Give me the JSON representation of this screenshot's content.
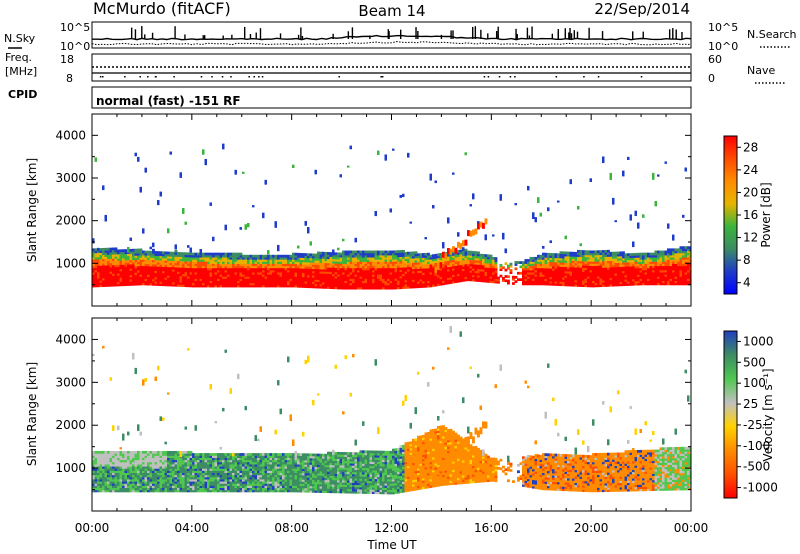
{
  "header": {
    "station": "McMurdo (fitACF)",
    "beam": "Beam 14",
    "date": "22/Sep/2014"
  },
  "noise_panel": {
    "left_label": "N.Sky",
    "right_label": "N.Search",
    "left_ticks": [
      "10^5",
      "10^0"
    ],
    "right_ticks": [
      "10^5",
      "10^0"
    ]
  },
  "freq_panel": {
    "left_label_1": "Freq.",
    "left_label_2": "[MHz]",
    "right_label": "Nave",
    "left_ticks": [
      "18",
      "8"
    ],
    "right_ticks": [
      "60",
      "0"
    ]
  },
  "cpid": {
    "label": "CPID",
    "text": "normal (fast) -151 RF"
  },
  "power_panel": {
    "ylabel": "Slant Range [km]",
    "yticks": [
      "4000",
      "3000",
      "2000",
      "1000"
    ],
    "cbar_label": "Power [dB]",
    "cbar_ticks": [
      "28",
      "24",
      "20",
      "16",
      "12",
      "8",
      "4"
    ],
    "cbar_colors": [
      "#ff0000",
      "#ff4b00",
      "#ff8c00",
      "#e6b400",
      "#3cb43c",
      "#3c8c64",
      "#1e3cc8",
      "#0000ff"
    ]
  },
  "velocity_panel": {
    "ylabel": "Slant Range [km]",
    "yticks": [
      "4000",
      "3000",
      "2000",
      "1000"
    ],
    "cbar_label": "Velocity [m s⁻¹]",
    "cbar_ticks": [
      "1000",
      "500",
      "100",
      "25",
      "-25",
      "-100",
      "-500",
      "-1000"
    ],
    "cbar_colors": [
      "#2040c0",
      "#3c8c64",
      "#50c850",
      "#c0c0c0",
      "#ffd200",
      "#ff8c00",
      "#ff5000",
      "#ff0000"
    ]
  },
  "xaxis": {
    "ticks": [
      "00:00",
      "04:00",
      "08:00",
      "12:00",
      "16:00",
      "20:00",
      "00:00"
    ],
    "label": "Time UT"
  },
  "chart_data": {
    "type": "heatmap",
    "x_unit": "hours UT",
    "xlim": [
      0,
      24
    ],
    "ylim": [
      0,
      4500
    ],
    "power": {
      "bands": [
        {
          "t": 0,
          "lo": 450,
          "hi": 1350
        },
        {
          "t": 2,
          "lo": 500,
          "hi": 1300
        },
        {
          "t": 4,
          "lo": 450,
          "hi": 1250
        },
        {
          "t": 6,
          "lo": 450,
          "hi": 1200
        },
        {
          "t": 8,
          "lo": 450,
          "hi": 1200
        },
        {
          "t": 10,
          "lo": 400,
          "hi": 1250
        },
        {
          "t": 12,
          "lo": 400,
          "hi": 1300
        },
        {
          "t": 13.5,
          "lo": 450,
          "hi": 1200
        },
        {
          "t": 15,
          "lo": 600,
          "hi": 1300
        },
        {
          "t": 17,
          "lo": 500,
          "hi": 1000
        },
        {
          "t": 18,
          "lo": 500,
          "hi": 1200
        },
        {
          "t": 20,
          "lo": 450,
          "hi": 1300
        },
        {
          "t": 22,
          "lo": 500,
          "hi": 1200
        },
        {
          "t": 24,
          "lo": 500,
          "hi": 1400
        }
      ]
    },
    "velocity": {
      "bands": [
        {
          "t": 0,
          "lo": 450,
          "hi": 1400
        },
        {
          "t": 4,
          "lo": 450,
          "hi": 1350
        },
        {
          "t": 8,
          "lo": 450,
          "hi": 1300
        },
        {
          "t": 12,
          "lo": 400,
          "hi": 1400
        },
        {
          "t": 14,
          "lo": 600,
          "hi": 2000
        },
        {
          "t": 16,
          "lo": 700,
          "hi": 1200
        },
        {
          "t": 18,
          "lo": 500,
          "hi": 1300
        },
        {
          "t": 20,
          "lo": 450,
          "hi": 1300
        },
        {
          "t": 24,
          "lo": 500,
          "hi": 1500
        }
      ]
    }
  }
}
